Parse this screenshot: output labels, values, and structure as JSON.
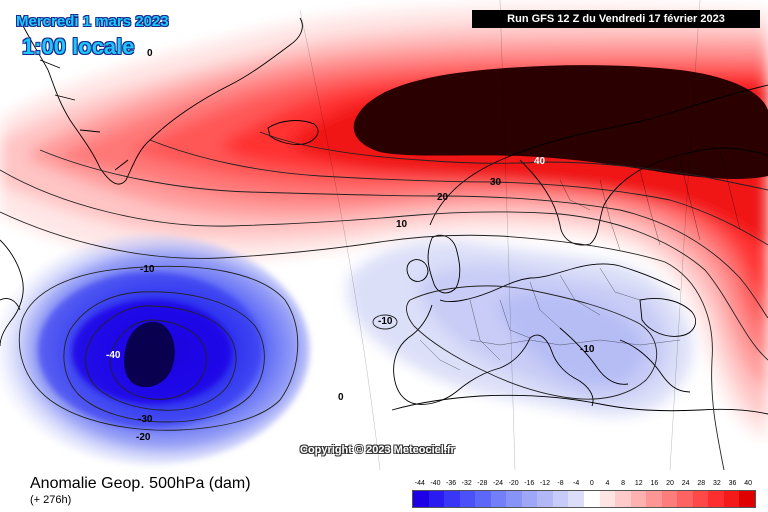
{
  "header": {
    "date": "Mercredi 1 mars 2023",
    "time": "1:00 locale",
    "run": "Run GFS 12 Z du Vendredi 17 février 2023"
  },
  "footer": {
    "field": "Anomalie Geop. 500hPa (dam)",
    "lead": "(+ 276h)",
    "copyright": "Copyright © 2023 Meteociel.fr"
  },
  "contours": {
    "labels": [
      "0",
      "40",
      "30",
      "20",
      "10",
      "-10",
      "-10",
      "-10",
      "-40",
      "-30",
      "-20",
      "0"
    ]
  },
  "legend": {
    "values": [
      "-44",
      "-40",
      "-36",
      "-32",
      "-28",
      "-24",
      "-20",
      "-16",
      "-12",
      "-8",
      "-4",
      "0",
      "4",
      "8",
      "12",
      "16",
      "20",
      "24",
      "28",
      "32",
      "36",
      "40"
    ],
    "colors": [
      "#1e00e6",
      "#2a1cf0",
      "#3a36f5",
      "#4b50f7",
      "#5d68f8",
      "#727ff8",
      "#8893f7",
      "#9ea6f7",
      "#b2b8f6",
      "#c6cbf7",
      "#dcdef9",
      "#ffffff",
      "#ffe4e4",
      "#ffcaca",
      "#ffb0b0",
      "#ff9696",
      "#ff7c7c",
      "#ff6262",
      "#ff4848",
      "#ff2e2e",
      "#f51a1a",
      "#e00000"
    ]
  },
  "icons": {
    "map": "synoptic-map",
    "legend": "color-scale-bar"
  }
}
